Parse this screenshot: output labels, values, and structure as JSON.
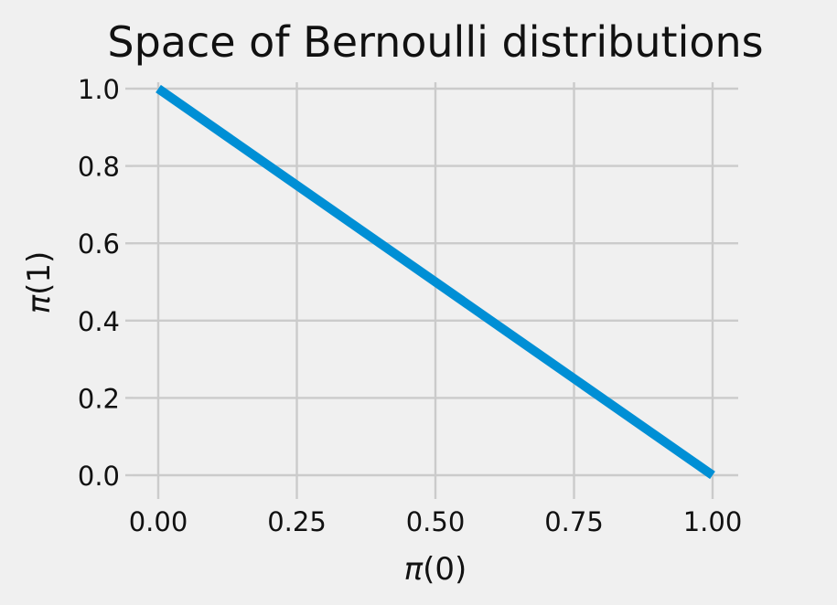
{
  "chart_data": {
    "type": "line",
    "title": "Space of Bernoulli distributions",
    "xlabel": {
      "symbol": "π",
      "arg": "(0)"
    },
    "ylabel": {
      "symbol": "π",
      "arg": "(1)"
    },
    "xlim": [
      -0.05,
      1.05
    ],
    "ylim": [
      -0.05,
      1.05
    ],
    "xticks": [
      0.0,
      0.25,
      0.5,
      0.75,
      1.0
    ],
    "xtick_labels": [
      "0.00",
      "0.25",
      "0.50",
      "0.75",
      "1.00"
    ],
    "yticks": [
      0.0,
      0.2,
      0.4,
      0.6,
      0.8,
      1.0
    ],
    "ytick_labels": [
      "0.0",
      "0.2",
      "0.4",
      "0.6",
      "0.8",
      "1.0"
    ],
    "grid": true,
    "series": [
      {
        "x": [
          0.0,
          1.0
        ],
        "y": [
          1.0,
          0.0
        ],
        "color": "#008fd5"
      }
    ]
  }
}
